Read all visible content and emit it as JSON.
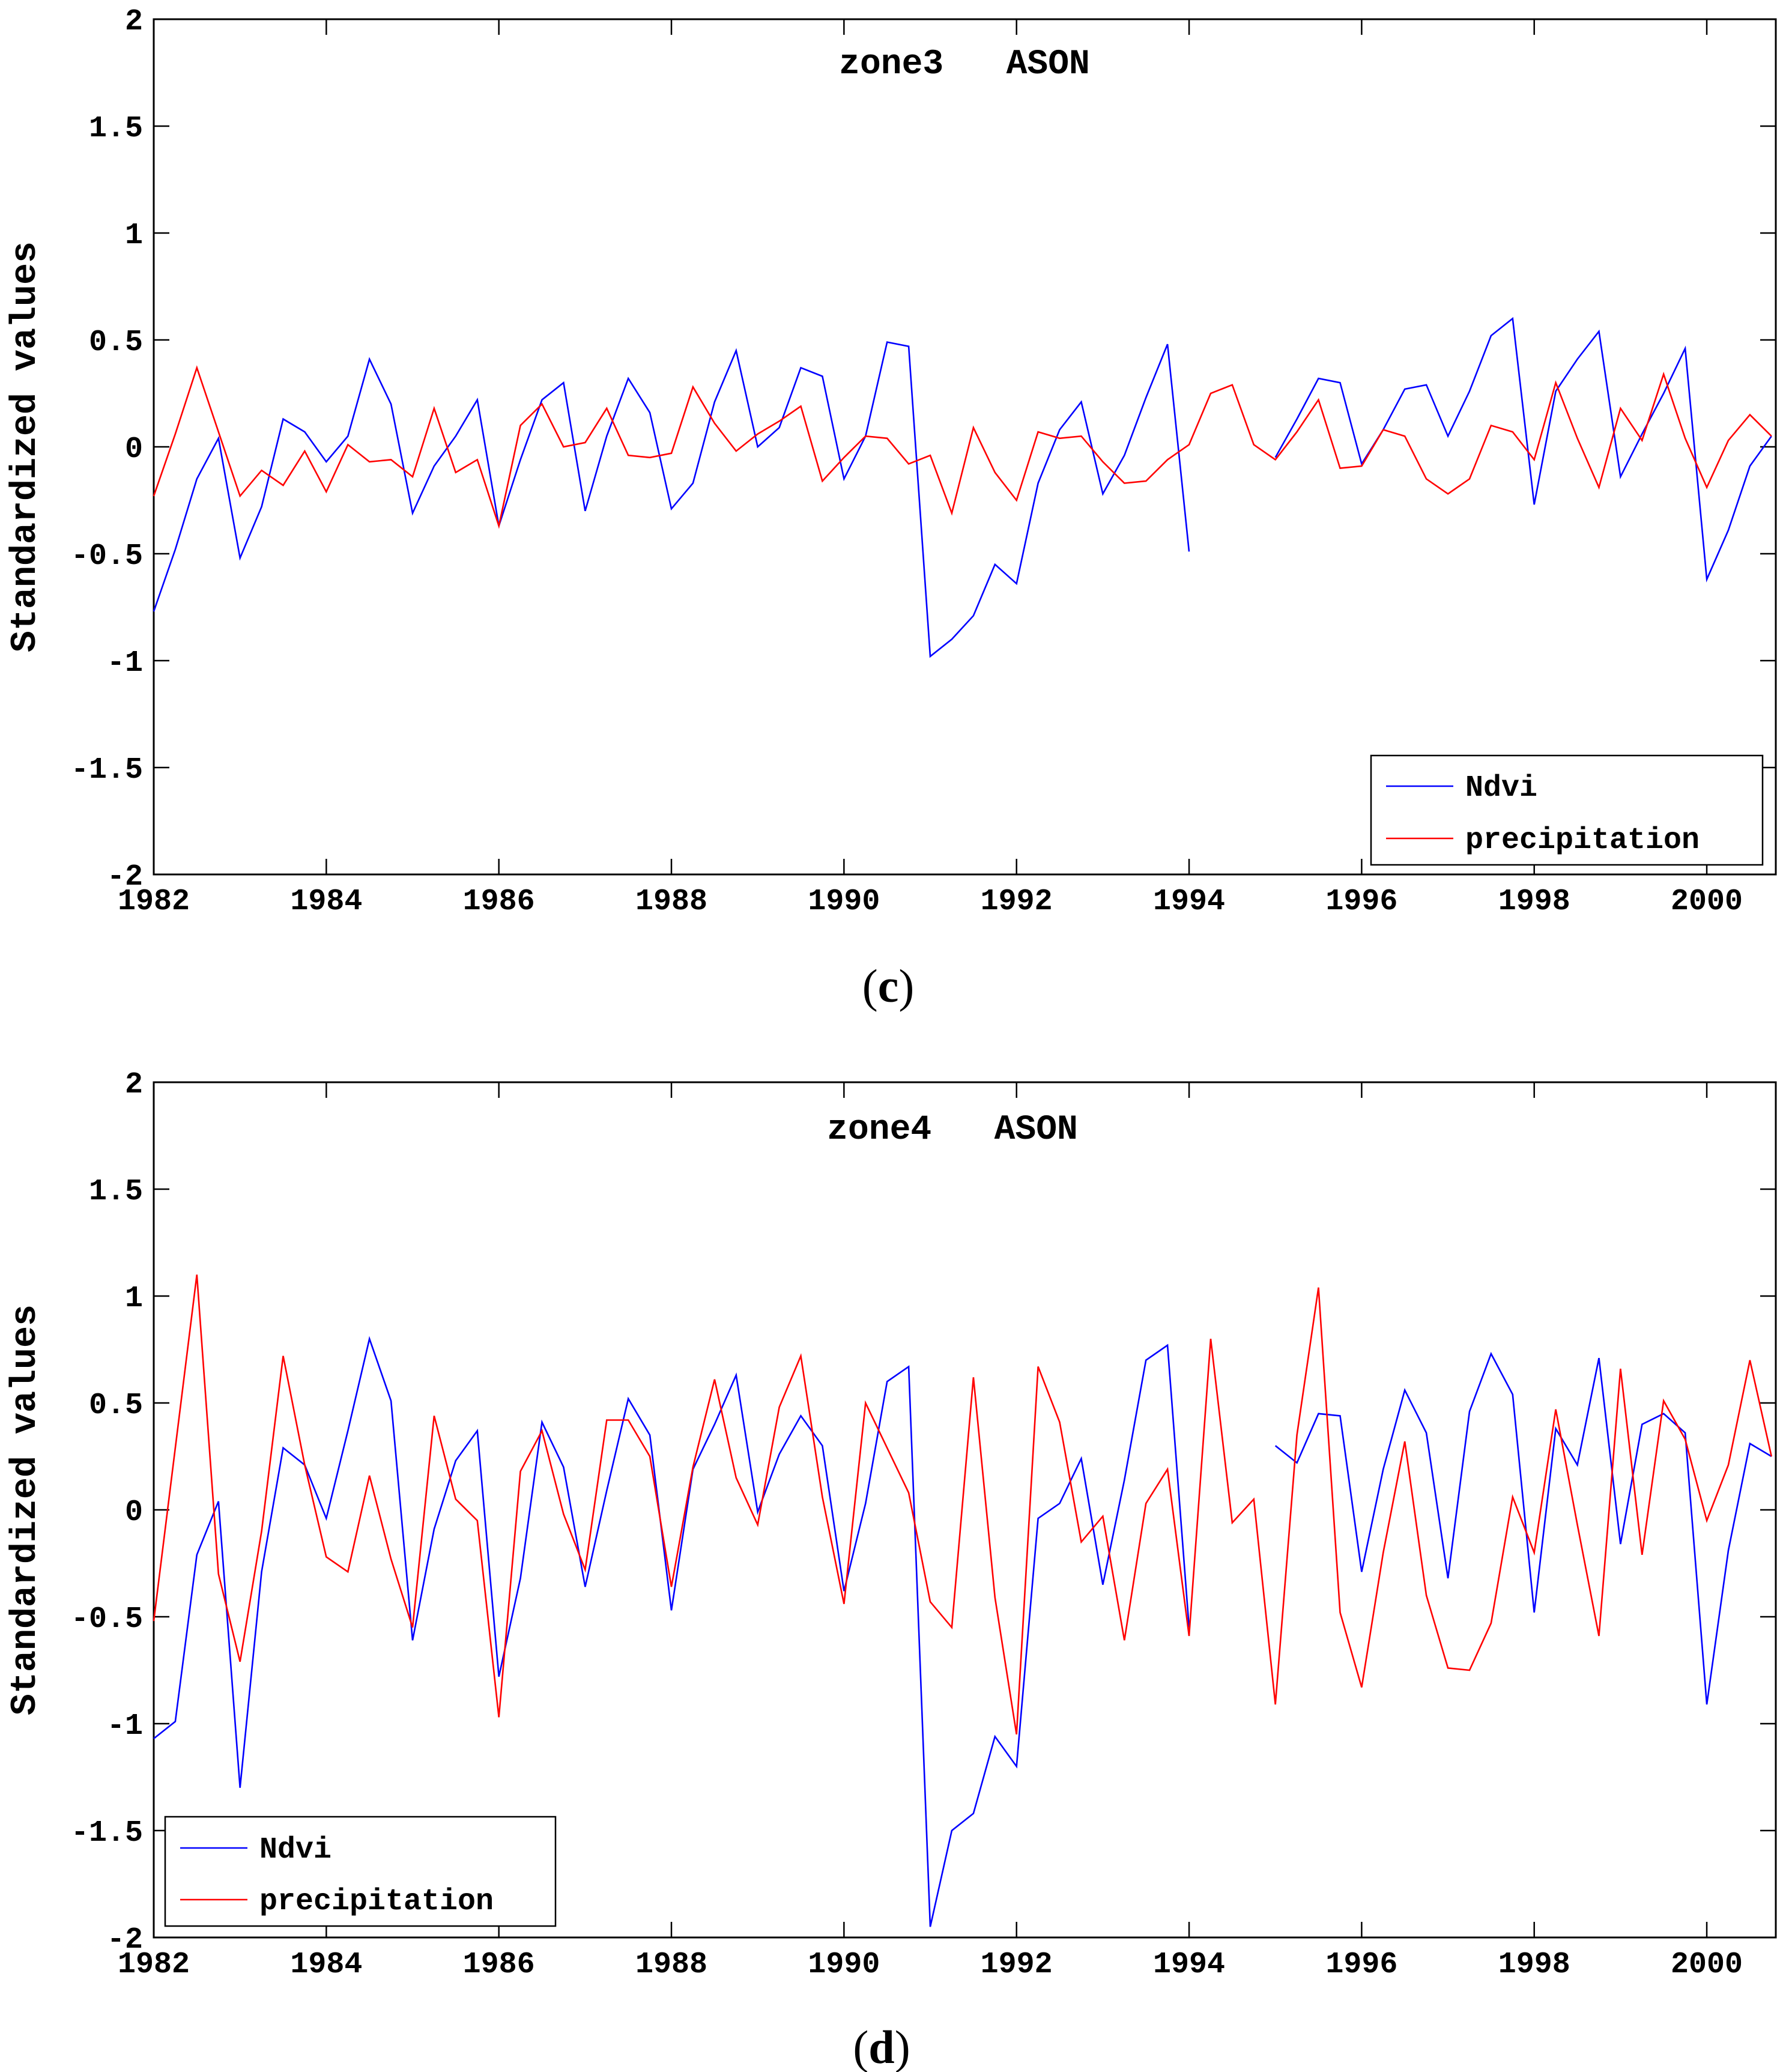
{
  "chart_data": [
    {
      "type": "line",
      "title": "zone3   ASON",
      "ylabel": "Standardized values",
      "xlabel": "",
      "xlim": [
        1982,
        2000.8
      ],
      "ylim": [
        -2,
        2
      ],
      "xticks": [
        1982,
        1984,
        1986,
        1988,
        1990,
        1992,
        1994,
        1996,
        1998,
        2000
      ],
      "yticks": [
        2,
        1.5,
        1,
        0.5,
        0,
        -0.5,
        -1,
        -1.5,
        -2
      ],
      "ytick_labels": [
        "2",
        "1.5",
        "1",
        "0.5",
        "0",
        "-0.5",
        "-1",
        "-1.5",
        "-2"
      ],
      "legend_position": "bottom-right",
      "caption_open": "(",
      "caption_letter": "c",
      "caption_close": ")",
      "series": [
        {
          "name": "Ndvi",
          "color": "#0000ff",
          "segments": [
            {
              "x0": 1982,
              "values": [
                -0.77,
                -0.48,
                -0.15,
                0.04,
                -0.52,
                -0.28,
                0.13,
                0.07,
                -0.07,
                0.05,
                0.41,
                0.2,
                -0.31,
                -0.09,
                0.05,
                0.22,
                -0.37,
                -0.06,
                0.22,
                0.3,
                -0.3,
                0.05,
                0.32,
                0.16,
                -0.29,
                -0.17,
                0.21,
                0.45,
                0.0,
                0.09,
                0.37,
                0.33,
                -0.15,
                0.05,
                0.49,
                0.47,
                -0.98,
                -0.9,
                -0.79,
                -0.55,
                -0.64,
                -0.17,
                0.08,
                0.21,
                -0.22,
                -0.04,
                0.23,
                0.48,
                -0.49
              ]
            },
            {
              "x0": 1995,
              "values": [
                -0.05,
                0.13,
                0.32,
                0.3,
                -0.08,
                0.08,
                0.27,
                0.29,
                0.05,
                0.26,
                0.52,
                0.6,
                -0.27,
                0.26,
                0.41,
                0.54,
                -0.14,
                0.06,
                0.25,
                0.46,
                -0.62,
                -0.39,
                -0.09,
                0.05
              ]
            }
          ]
        },
        {
          "name": "precipitation",
          "color": "#ff0000",
          "segments": [
            {
              "x0": 1982,
              "values": [
                -0.23,
                0.06,
                0.37,
                0.07,
                -0.23,
                -0.11,
                -0.18,
                -0.02,
                -0.21,
                0.01,
                -0.07,
                -0.06,
                -0.14,
                0.18,
                -0.12,
                -0.06,
                -0.37,
                0.1,
                0.2,
                0.0,
                0.02,
                0.18,
                -0.04,
                -0.05,
                -0.03,
                0.28,
                0.11,
                -0.02,
                0.06,
                0.12,
                0.19,
                -0.16,
                -0.05,
                0.05,
                0.04,
                -0.08,
                -0.04,
                -0.31,
                0.09,
                -0.12,
                -0.25,
                0.07,
                0.04,
                0.05,
                -0.07,
                -0.17,
                -0.16,
                -0.06,
                0.01,
                0.25,
                0.29,
                0.01,
                -0.06,
                0.07,
                0.22,
                -0.1,
                -0.09,
                0.08,
                0.05,
                -0.15,
                -0.22,
                -0.15,
                0.1,
                0.07,
                -0.06,
                0.3,
                0.04,
                -0.19,
                0.18,
                0.03,
                0.34,
                0.04,
                -0.19,
                0.03,
                0.15,
                0.05
              ]
            }
          ]
        }
      ]
    },
    {
      "type": "line",
      "title": "zone4   ASON",
      "ylabel": "Standardized values",
      "xlabel": "",
      "xlim": [
        1982,
        2000.8
      ],
      "ylim": [
        -2,
        2
      ],
      "xticks": [
        1982,
        1984,
        1986,
        1988,
        1990,
        1992,
        1994,
        1996,
        1998,
        2000
      ],
      "yticks": [
        2,
        1.5,
        1,
        0.5,
        0,
        -0.5,
        -1,
        -1.5,
        -2
      ],
      "ytick_labels": [
        "2",
        "1.5",
        "1",
        "0.5",
        "0",
        "-0.5",
        "-1",
        "-1.5",
        "-2"
      ],
      "legend_position": "bottom-left",
      "caption_open": "(",
      "caption_letter": "d",
      "caption_close": ")",
      "series": [
        {
          "name": "Ndvi",
          "color": "#0000ff",
          "segments": [
            {
              "x0": 1982,
              "values": [
                -1.07,
                -0.99,
                -0.21,
                0.04,
                -1.3,
                -0.29,
                0.29,
                0.21,
                -0.04,
                0.37,
                0.8,
                0.51,
                -0.61,
                -0.09,
                0.23,
                0.37,
                -0.78,
                -0.32,
                0.41,
                0.2,
                -0.36,
                0.09,
                0.52,
                0.35,
                -0.47,
                0.19,
                0.4,
                0.63,
                -0.01,
                0.26,
                0.44,
                0.3,
                -0.38,
                0.03,
                0.6,
                0.67,
                -1.95,
                -1.5,
                -1.42,
                -1.06,
                -1.2,
                -0.04,
                0.03,
                0.24,
                -0.35,
                0.14,
                0.7,
                0.77,
                -0.55
              ]
            },
            {
              "x0": 1995,
              "values": [
                0.3,
                0.22,
                0.45,
                0.44,
                -0.29,
                0.19,
                0.56,
                0.36,
                -0.32,
                0.46,
                0.73,
                0.54,
                -0.48,
                0.38,
                0.21,
                0.71,
                -0.16,
                0.4,
                0.45,
                0.36,
                -0.91,
                -0.19,
                0.31,
                0.25
              ]
            }
          ]
        },
        {
          "name": "precipitation",
          "color": "#ff0000",
          "segments": [
            {
              "x0": 1982,
              "values": [
                -0.52,
                0.29,
                1.1,
                -0.3,
                -0.71,
                -0.1,
                0.72,
                0.21,
                -0.22,
                -0.29,
                0.16,
                -0.23,
                -0.55,
                0.44,
                0.05,
                -0.05,
                -0.97,
                0.18,
                0.37,
                -0.02,
                -0.28,
                0.42,
                0.42,
                0.25,
                -0.36,
                0.2,
                0.61,
                0.15,
                -0.07,
                0.48,
                0.72,
                0.06,
                -0.44,
                0.5,
                0.29,
                0.08,
                -0.43,
                -0.55,
                0.62,
                -0.41,
                -1.05,
                0.67,
                0.41,
                -0.15,
                -0.03,
                -0.61,
                0.03,
                0.19,
                -0.59,
                0.8,
                -0.06,
                0.05,
                -0.91,
                0.35,
                1.04,
                -0.48,
                -0.83,
                -0.2,
                0.32,
                -0.4,
                -0.74,
                -0.75,
                -0.53,
                0.06,
                -0.2,
                0.47,
                -0.07,
                -0.59,
                0.66,
                -0.21,
                0.51,
                0.33,
                -0.05,
                0.21,
                0.7,
                0.25
              ]
            }
          ]
        }
      ]
    }
  ]
}
